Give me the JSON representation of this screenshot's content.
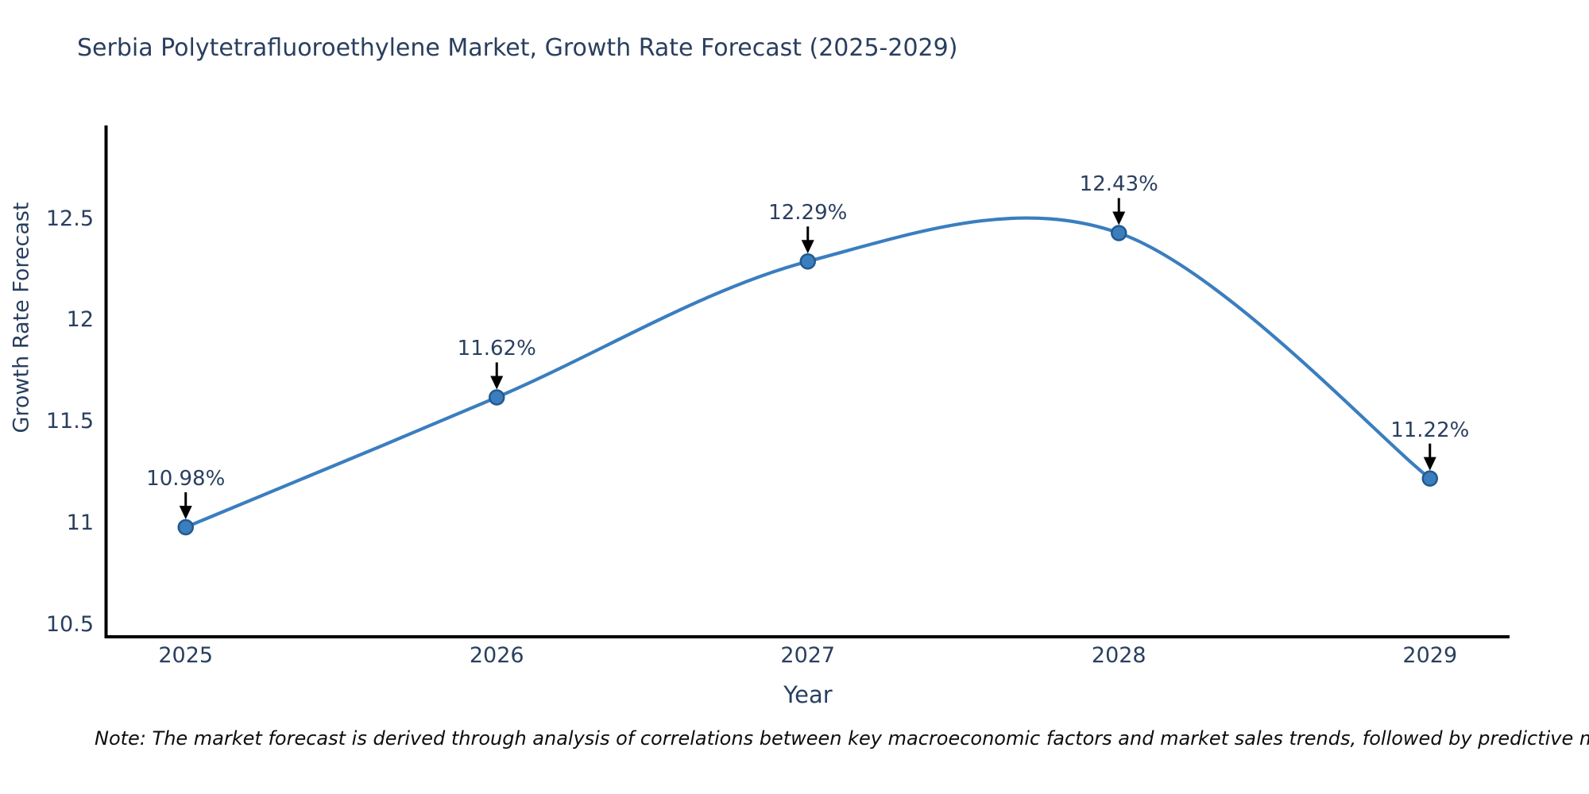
{
  "page": {
    "background": "#ffffff"
  },
  "chart_data": {
    "type": "line",
    "line_shape": "spline",
    "title": "Serbia Polytetrafluoroethylene Market, Growth Rate Forecast (2025-2029)",
    "xlabel": "Year",
    "ylabel": "Growth Rate Forecast",
    "x": [
      2025,
      2026,
      2027,
      2028,
      2029
    ],
    "values": [
      10.98,
      11.62,
      12.29,
      12.43,
      11.22
    ],
    "point_labels": [
      "10.98%",
      "11.62%",
      "12.29%",
      "12.43%",
      "11.22%"
    ],
    "xtick_labels": [
      "2025",
      "2026",
      "2027",
      "2028",
      "2029"
    ],
    "ytick_labels": [
      "10.5",
      "11",
      "11.5",
      "12",
      "12.5"
    ],
    "ytick_values": [
      10.5,
      11,
      11.5,
      12,
      12.5
    ],
    "xlim": [
      2024.744,
      2029.256
    ],
    "ylim": [
      10.44,
      12.96
    ],
    "grid": false,
    "legend_position": "none",
    "line_color": "#3a7ebf",
    "marker_color": "#3a7ebf",
    "marker_edge_color": "#24598c",
    "annotation_arrow_color": "#000000",
    "axis_color": "#000000",
    "text_color": "#2a3f5f",
    "note": "Note: The market forecast is derived through analysis of correlations between key macroeconomic factors and market sales trends, followed by predictive modeling to project future sal"
  }
}
